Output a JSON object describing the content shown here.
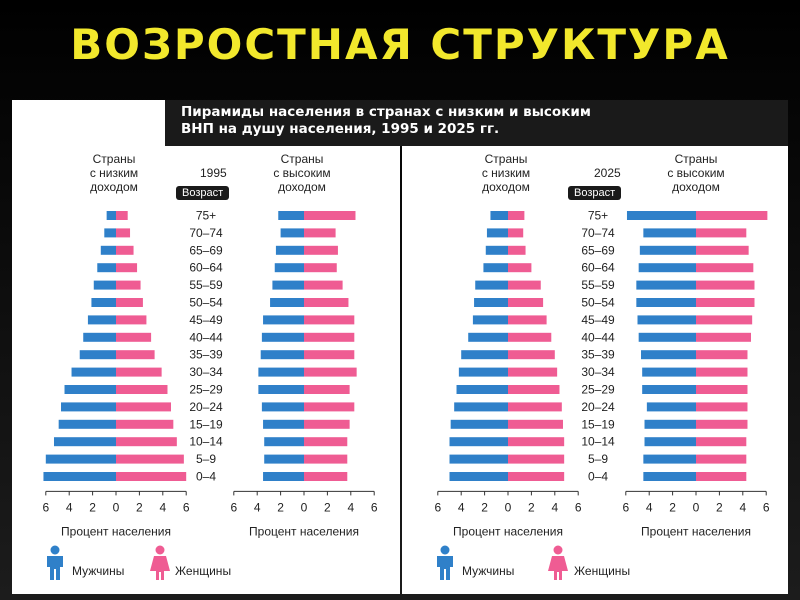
{
  "slide_title": "ВОЗРОСТНАЯ СТРУКТУРА",
  "header": {
    "line1": "Пирамиды населения в странах с низким и высоким",
    "line2": "ВНП на душу населения, 1995 и 2025 гг."
  },
  "labels": {
    "low_income": "Страны\nс низким\nдоходом",
    "high_income": "Страны\nс высоким\nдоходом",
    "age": "Возраст",
    "xlabel": "Процент населения"
  },
  "legend": {
    "men": "Мужчины",
    "women": "Женщины",
    "men_color": "#2f80c9",
    "women_color": "#ef5c93"
  },
  "chart_data": [
    {
      "type": "bar",
      "title": "1995",
      "age_groups": [
        "75+",
        "70–74",
        "65–69",
        "60–64",
        "55–59",
        "50–54",
        "45–49",
        "40–44",
        "35–39",
        "30–34",
        "25–29",
        "20–24",
        "15–19",
        "10–14",
        "5–9",
        "0–4"
      ],
      "series": [
        {
          "name": "Мужчины",
          "country": "Страны с низким доходом",
          "values": [
            0.8,
            1.0,
            1.3,
            1.6,
            1.9,
            2.1,
            2.4,
            2.8,
            3.1,
            3.8,
            4.4,
            4.7,
            4.9,
            5.3,
            6.0,
            6.2
          ]
        },
        {
          "name": "Женщины",
          "country": "Страны с низким доходом",
          "values": [
            1.0,
            1.2,
            1.5,
            1.8,
            2.1,
            2.3,
            2.6,
            3.0,
            3.3,
            3.9,
            4.4,
            4.7,
            4.9,
            5.2,
            5.8,
            6.0
          ]
        },
        {
          "name": "Мужчины",
          "country": "Страны с высоким доходом",
          "values": [
            2.2,
            2.0,
            2.4,
            2.5,
            2.7,
            2.9,
            3.5,
            3.6,
            3.7,
            3.9,
            3.9,
            3.6,
            3.5,
            3.4,
            3.4,
            3.5
          ]
        },
        {
          "name": "Женщины",
          "country": "Страны с высоким доходом",
          "values": [
            4.4,
            2.7,
            2.9,
            2.8,
            3.3,
            3.8,
            4.3,
            4.3,
            4.3,
            4.5,
            3.9,
            4.3,
            3.9,
            3.7,
            3.7,
            3.7
          ]
        }
      ],
      "xticks": [
        6,
        4,
        2,
        0,
        2,
        4,
        6
      ],
      "xlim": [
        -6,
        6
      ]
    },
    {
      "type": "bar",
      "title": "2025",
      "age_groups": [
        "75+",
        "70–74",
        "65–69",
        "60–64",
        "55–59",
        "50–54",
        "45–49",
        "40–44",
        "35–39",
        "30–34",
        "25–29",
        "20–24",
        "15–19",
        "10–14",
        "5–9",
        "0–4"
      ],
      "series": [
        {
          "name": "Мужчины",
          "country": "Страны с низким доходом",
          "values": [
            1.5,
            1.8,
            1.9,
            2.1,
            2.8,
            2.9,
            3.0,
            3.4,
            4.0,
            4.2,
            4.4,
            4.6,
            4.9,
            5.0,
            5.0,
            5.0
          ]
        },
        {
          "name": "Женщины",
          "country": "Страны с низким доходом",
          "values": [
            1.4,
            1.3,
            1.5,
            2.0,
            2.8,
            3.0,
            3.3,
            3.7,
            4.0,
            4.2,
            4.4,
            4.6,
            4.7,
            4.8,
            4.8,
            4.8
          ]
        },
        {
          "name": "Мужчины",
          "country": "Страны с высоким доходом",
          "values": [
            5.9,
            4.5,
            4.8,
            4.9,
            5.1,
            5.1,
            5.0,
            4.9,
            4.7,
            4.6,
            4.6,
            4.2,
            4.4,
            4.4,
            4.5,
            4.5
          ]
        },
        {
          "name": "Женщины",
          "country": "Страны с высоким доходом",
          "values": [
            6.1,
            4.3,
            4.5,
            4.9,
            5.0,
            5.0,
            4.8,
            4.7,
            4.4,
            4.4,
            4.4,
            4.4,
            4.4,
            4.3,
            4.3,
            4.3
          ]
        }
      ],
      "xticks": [
        6,
        4,
        2,
        0,
        2,
        4,
        6
      ],
      "xlim": [
        -6,
        6
      ]
    }
  ]
}
